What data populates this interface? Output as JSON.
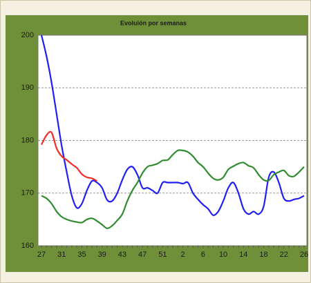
{
  "chart_data": {
    "type": "line",
    "title": "Evoluión por semanas",
    "categories": [
      "27",
      null,
      null,
      null,
      "31",
      null,
      null,
      null,
      "35",
      null,
      null,
      null,
      "39",
      null,
      null,
      null,
      "43",
      null,
      null,
      null,
      "47",
      null,
      null,
      null,
      "51",
      null,
      null,
      null,
      "2",
      null,
      null,
      null,
      "6",
      null,
      null,
      null,
      "10",
      null,
      null,
      null,
      "14",
      null,
      null,
      null,
      "18",
      null,
      null,
      null,
      "22",
      null,
      null,
      null,
      "26"
    ],
    "series": [
      {
        "color": "#1f1ff5",
        "values": [
          200,
          196,
          191,
          185,
          179,
          174,
          169.5,
          167.2,
          168,
          170.5,
          172.3,
          172,
          171,
          168.7,
          168.5,
          170,
          172.5,
          174.5,
          175,
          173.5,
          171,
          171,
          170.5,
          170,
          172,
          172,
          172,
          172,
          171.8,
          172,
          170,
          168.8,
          167.8,
          167,
          165.8,
          166.5,
          168.5,
          171,
          172,
          170,
          167,
          166,
          166.5,
          166,
          167.5,
          173,
          174,
          172,
          169,
          168.5,
          168.8,
          169,
          169.5
        ]
      },
      {
        "color": "#f52a2a",
        "values": [
          179.2,
          181,
          181.5,
          178.5,
          177,
          176.3,
          175.5,
          174.8,
          173.6,
          173,
          172.8,
          172.3,
          null,
          null,
          null,
          null,
          null,
          null,
          null,
          null,
          null,
          null,
          null,
          null,
          null,
          null,
          null,
          null,
          null,
          null,
          null,
          null,
          null,
          null,
          null,
          null,
          null,
          null,
          null,
          null,
          null,
          null,
          null,
          null,
          null,
          null,
          null,
          null,
          null,
          null,
          null,
          null,
          null
        ]
      },
      {
        "color": "#2e8b2e",
        "values": [
          169.5,
          169,
          168,
          166.5,
          165.5,
          165,
          164.7,
          164.5,
          164.4,
          165,
          165.2,
          164.7,
          164,
          163.3,
          163.8,
          164.8,
          166,
          168.5,
          170.5,
          172,
          173.8,
          175,
          175.3,
          175.6,
          176.2,
          176.3,
          177.3,
          178.1,
          178.1,
          177.8,
          177,
          175.8,
          175,
          173.8,
          172.8,
          172.5,
          173,
          174.5,
          175.1,
          175.6,
          175.8,
          175.2,
          174.8,
          173.5,
          172.5,
          172.4,
          173.5,
          174,
          174.3,
          173.3,
          173.2,
          174,
          175
        ]
      }
    ],
    "ylim": [
      160,
      200
    ],
    "yticks": [
      160,
      170,
      180,
      190,
      200
    ],
    "grid": true
  }
}
